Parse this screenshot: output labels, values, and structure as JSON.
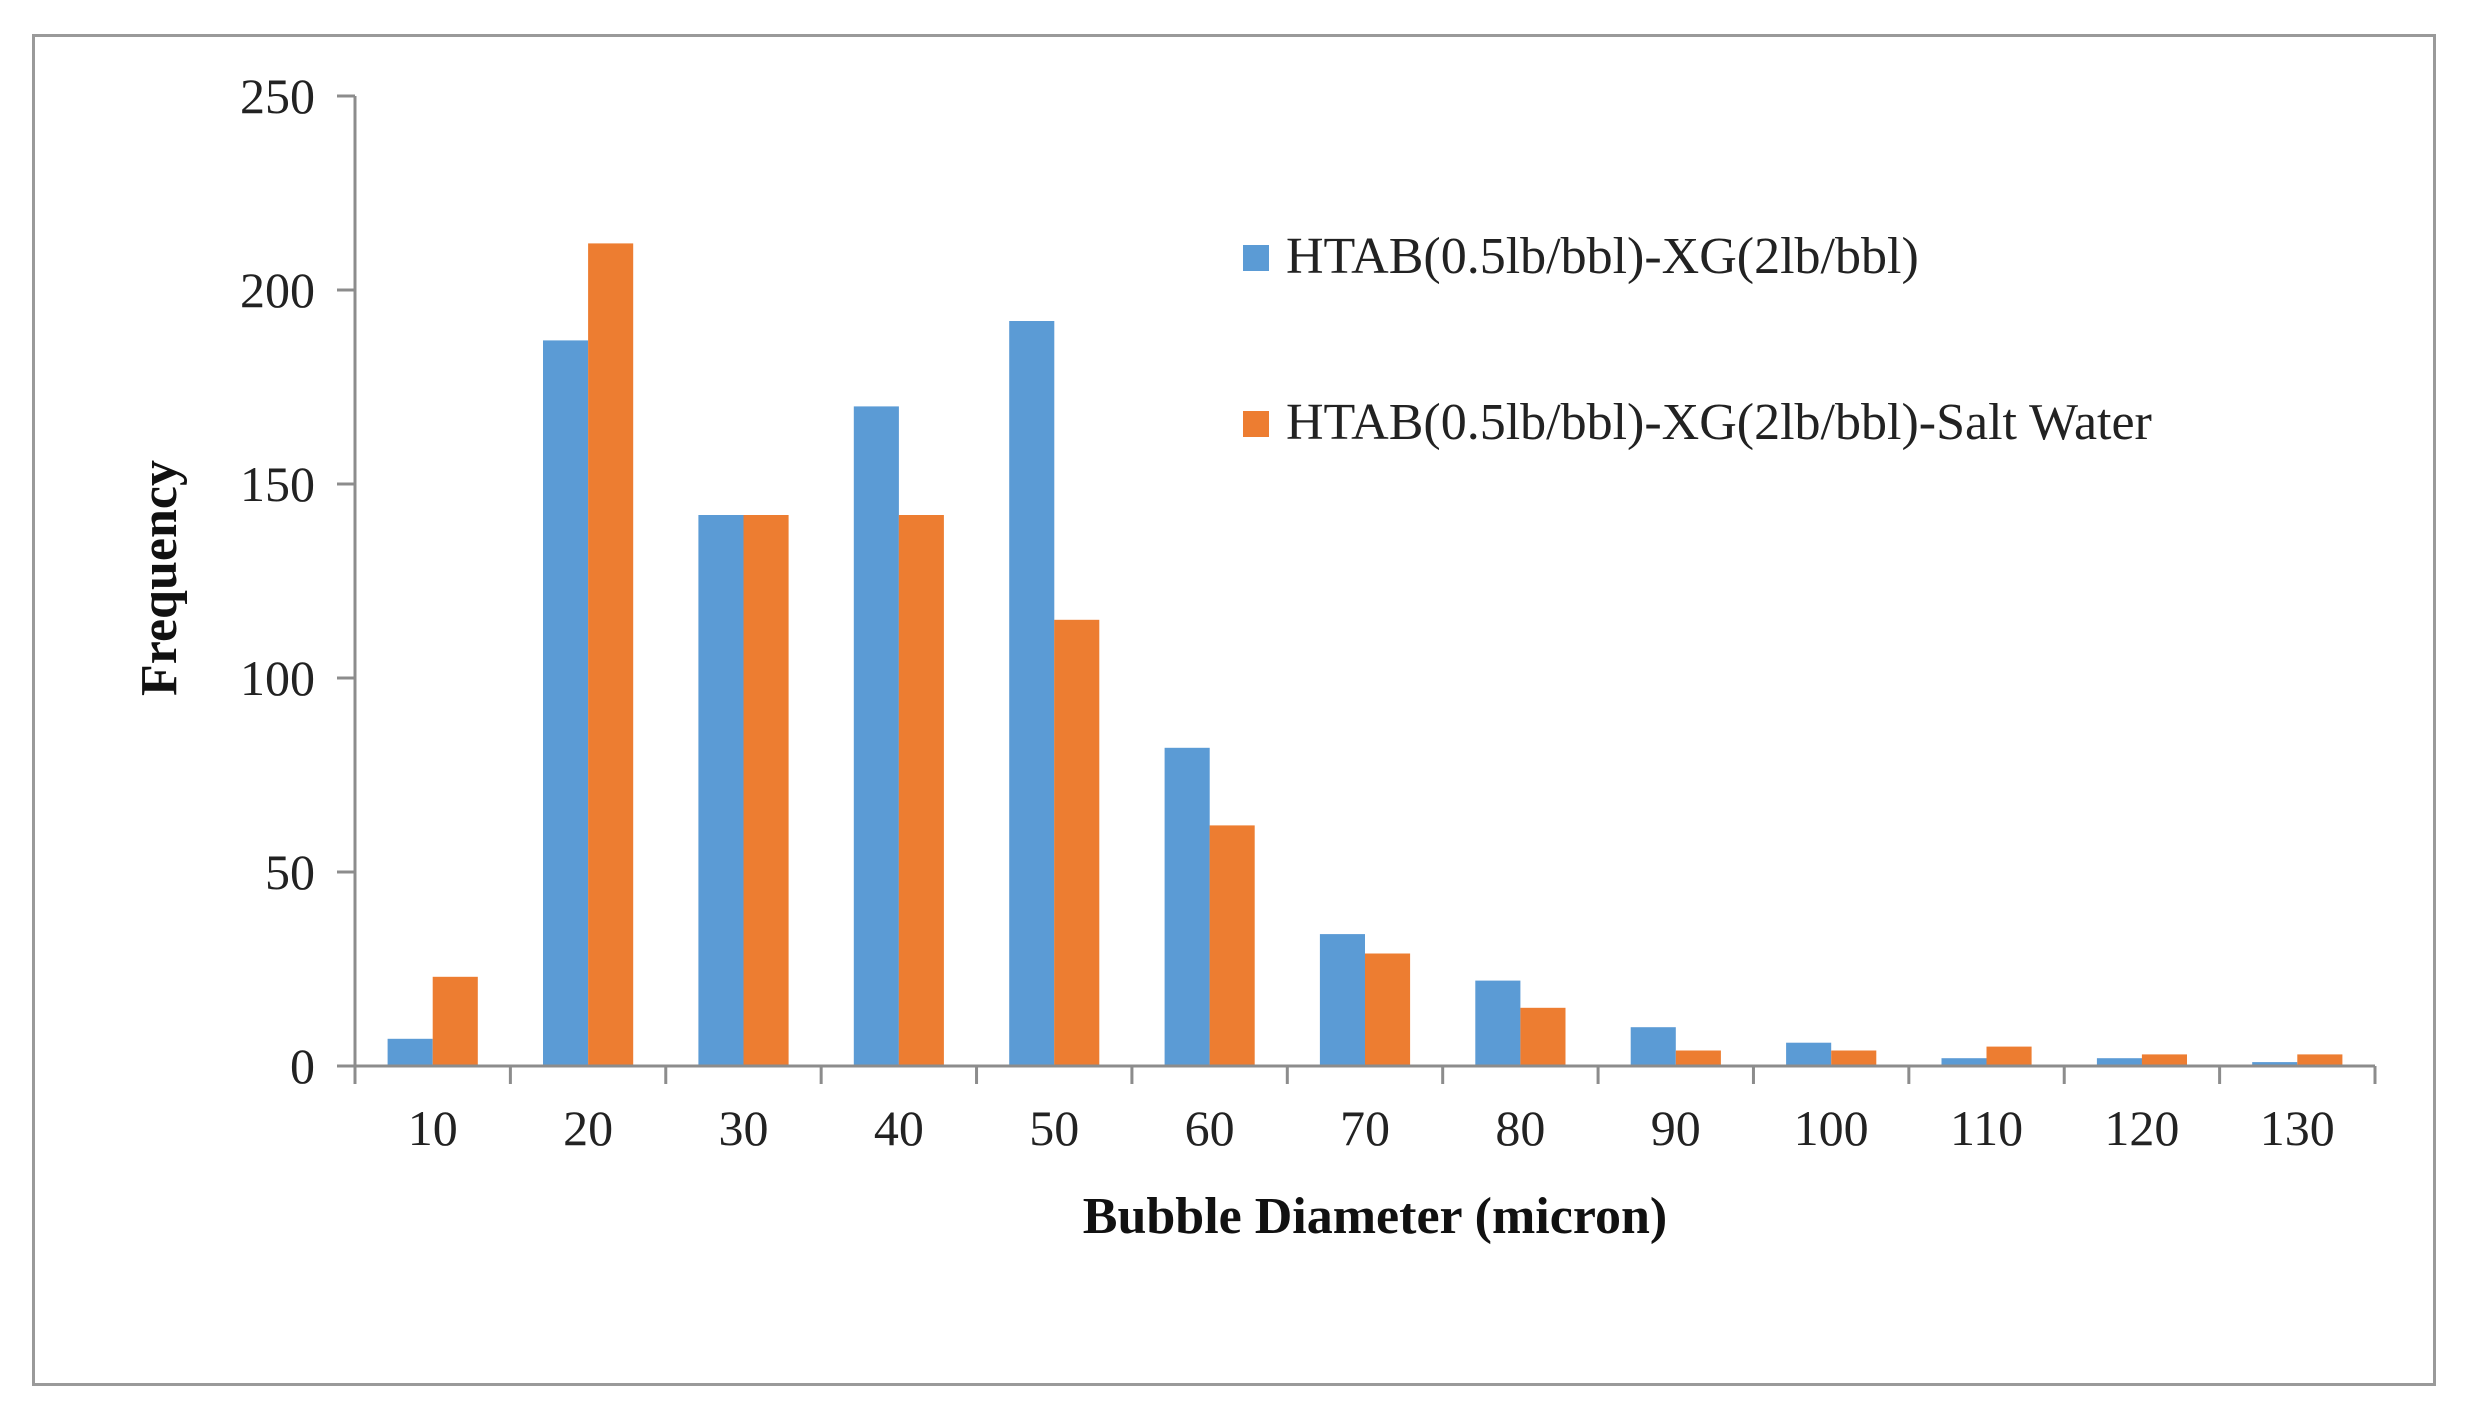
{
  "chart_data": {
    "type": "bar",
    "title": "",
    "xlabel": "Bubble Diameter (micron)",
    "ylabel": "Frequency",
    "ylim": [
      0,
      250
    ],
    "yticks": [
      0,
      50,
      100,
      150,
      200,
      250
    ],
    "grid": false,
    "legend_position": "top-right",
    "categories": [
      "10",
      "20",
      "30",
      "40",
      "50",
      "60",
      "70",
      "80",
      "90",
      "100",
      "110",
      "120",
      "130"
    ],
    "series": [
      {
        "name": "HTAB(0.5lb/bbl)-XG(2lb/bbl)",
        "color": "#5b9bd5",
        "values": [
          7,
          187,
          142,
          170,
          192,
          82,
          34,
          22,
          10,
          6,
          2,
          2,
          1
        ]
      },
      {
        "name": "HTAB(0.5lb/bbl)-XG(2lb/bbl)-Salt Water",
        "color": "#ed7d31",
        "values": [
          23,
          212,
          142,
          142,
          115,
          62,
          29,
          15,
          4,
          4,
          5,
          3,
          3
        ]
      }
    ]
  }
}
